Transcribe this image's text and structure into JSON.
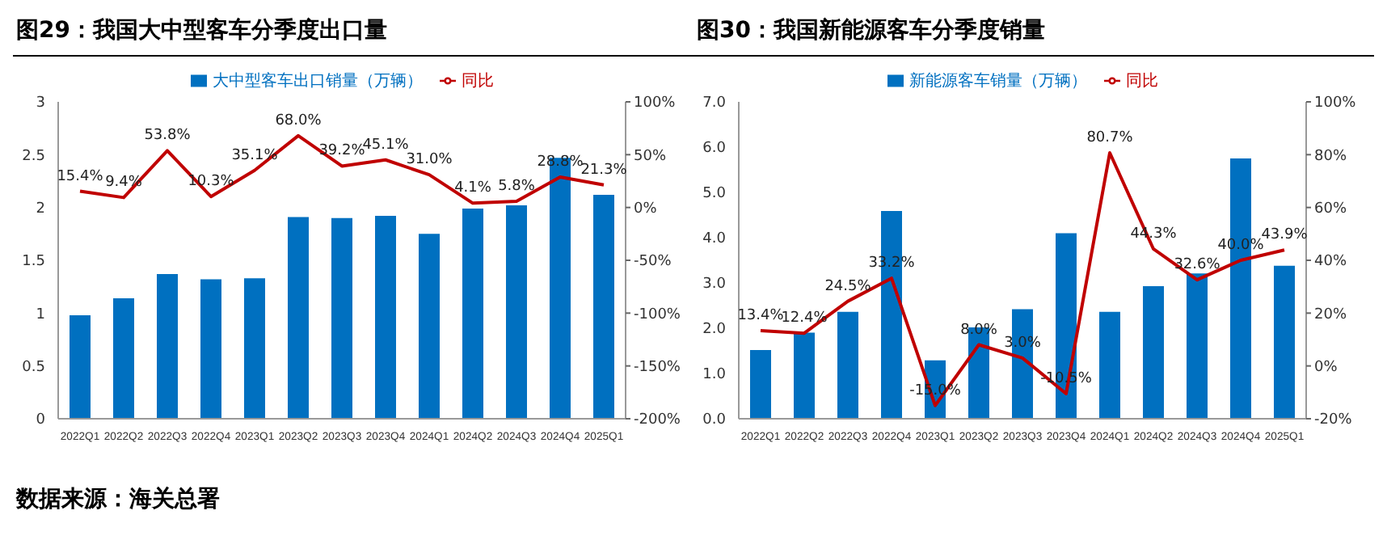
{
  "chart_data": [
    {
      "type": "bar",
      "title": "图29：我国大中型客车分季度出口量",
      "categories": [
        "2022Q1",
        "2022Q2",
        "2022Q3",
        "2022Q4",
        "2023Q1",
        "2023Q2",
        "2023Q3",
        "2023Q4",
        "2024Q1",
        "2024Q2",
        "2024Q3",
        "2024Q4",
        "2025Q1"
      ],
      "series": [
        {
          "name": "大中型客车出口销量（万辆）",
          "type": "bar",
          "color": "#0070c0",
          "values": [
            0.98,
            1.14,
            1.37,
            1.32,
            1.33,
            1.91,
            1.9,
            1.92,
            1.75,
            1.99,
            2.02,
            2.47,
            2.12
          ]
        },
        {
          "name": "同比",
          "type": "line",
          "axis": "y2",
          "color": "#c00000",
          "values": [
            15.4,
            9.4,
            53.8,
            10.3,
            35.1,
            68.0,
            39.2,
            45.1,
            31.0,
            4.1,
            5.8,
            28.8,
            21.3
          ],
          "value_labels": [
            "15.4%",
            "9.4%",
            "53.8%",
            "10.3%",
            "35.1%",
            "68.0%",
            "39.2%",
            "45.1%",
            "31.0%",
            "4.1%",
            "5.8%",
            "28.8%",
            "21.3%"
          ]
        }
      ],
      "ylim": [
        0,
        3
      ],
      "yticks": [
        0,
        0.5,
        1,
        1.5,
        2,
        2.5,
        3
      ],
      "y2lim": [
        -200,
        100
      ],
      "y2ticks": [
        {
          "value": -200,
          "label": "-200%"
        },
        {
          "value": -150,
          "label": "-150%"
        },
        {
          "value": -100,
          "label": "-100%"
        },
        {
          "value": -50,
          "label": "-50%"
        },
        {
          "value": 0,
          "label": "0%"
        },
        {
          "value": 50,
          "label": "50%"
        },
        {
          "value": 100,
          "label": "100%"
        }
      ],
      "legend": "top",
      "annotations": [
        "数据来源：海关总署"
      ]
    },
    {
      "type": "bar",
      "title": "图30：我国新能源客车分季度销量",
      "categories": [
        "2022Q1",
        "2022Q2",
        "2022Q3",
        "2022Q4",
        "2023Q1",
        "2023Q2",
        "2023Q3",
        "2023Q4",
        "2024Q1",
        "2024Q2",
        "2024Q3",
        "2024Q4",
        "2025Q1"
      ],
      "series": [
        {
          "name": "新能源客车销量（万辆）",
          "type": "bar",
          "color": "#0070c0",
          "values": [
            1.52,
            1.9,
            2.36,
            4.59,
            1.29,
            2.02,
            2.42,
            4.1,
            2.36,
            2.93,
            3.21,
            5.75,
            3.38
          ]
        },
        {
          "name": "同比",
          "type": "line",
          "axis": "y2",
          "color": "#c00000",
          "values": [
            13.4,
            12.4,
            24.5,
            33.2,
            -15.0,
            8.0,
            3.0,
            -10.5,
            80.7,
            44.3,
            32.6,
            40.0,
            43.9
          ],
          "value_labels": [
            "13.4%",
            "12.4%",
            "24.5%",
            "33.2%",
            "-15.0%",
            "8.0%",
            "3.0%",
            "-10.5%",
            "80.7%",
            "44.3%",
            "32.6%",
            "40.0%",
            "43.9%"
          ]
        }
      ],
      "ylim": [
        0,
        7
      ],
      "yticks": [
        {
          "value": 0,
          "label": "0.0"
        },
        {
          "value": 1,
          "label": "1.0"
        },
        {
          "value": 2,
          "label": "2.0"
        },
        {
          "value": 3,
          "label": "3.0"
        },
        {
          "value": 4,
          "label": "4.0"
        },
        {
          "value": 5,
          "label": "5.0"
        },
        {
          "value": 6,
          "label": "6.0"
        },
        {
          "value": 7,
          "label": "7.0"
        }
      ],
      "y2lim": [
        -20,
        100
      ],
      "y2ticks": [
        {
          "value": -20,
          "label": "-20%"
        },
        {
          "value": 0,
          "label": "0%"
        },
        {
          "value": 20,
          "label": "20%"
        },
        {
          "value": 40,
          "label": "40%"
        },
        {
          "value": 60,
          "label": "60%"
        },
        {
          "value": 80,
          "label": "80%"
        },
        {
          "value": 100,
          "label": "100%"
        }
      ],
      "legend": "top"
    }
  ]
}
